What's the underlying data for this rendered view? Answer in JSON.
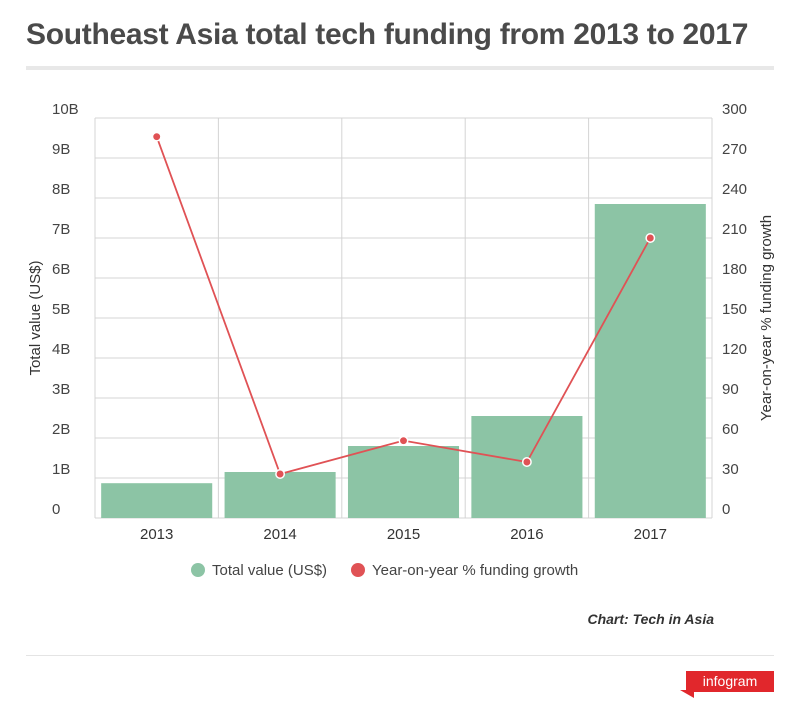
{
  "title": "Southeast Asia total tech funding from 2013 to 2017",
  "source": "Chart: Tech in Asia",
  "brand": "infogram",
  "colors": {
    "bar": "#8cc4a5",
    "line": "#e05255",
    "brand": "#e1272c"
  },
  "chart_data": {
    "type": "bar+line",
    "categories": [
      "2013",
      "2014",
      "2015",
      "2016",
      "2017"
    ],
    "series": [
      {
        "name": "Total value (US$)",
        "type": "bar",
        "axis": "left",
        "values": [
          870000000.0,
          1150000000.0,
          1800000000.0,
          2550000000.0,
          7850000000.0
        ]
      },
      {
        "name": "Year-on-year % funding growth",
        "type": "line",
        "axis": "right",
        "values": [
          286,
          33,
          58,
          42,
          210
        ]
      }
    ],
    "ylabel": "Total value (US$)",
    "y2label": "Year-on-year % funding growth",
    "ylim": [
      0,
      10000000000
    ],
    "y2lim": [
      0,
      300
    ],
    "yticks": [
      "0",
      "1B",
      "2B",
      "3B",
      "4B",
      "5B",
      "6B",
      "7B",
      "8B",
      "9B",
      "10B"
    ],
    "y2ticks": [
      "0",
      "30",
      "60",
      "90",
      "120",
      "150",
      "180",
      "210",
      "240",
      "270",
      "300"
    ],
    "grid": true,
    "legend": "bottom"
  }
}
